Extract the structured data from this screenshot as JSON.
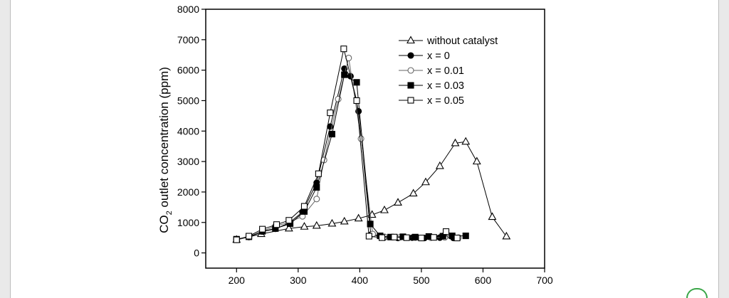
{
  "chart_data": {
    "type": "line",
    "title": "",
    "xlabel": "",
    "ylabel": "CO2 outlet concentration (ppm)",
    "ylabel_main": "CO",
    "ylabel_sub": "2",
    "ylabel_rest": " outlet concentration (ppm)",
    "xlim": [
      150,
      700
    ],
    "ylim": [
      -500,
      8000
    ],
    "x_ticks": [
      200,
      300,
      400,
      500,
      600,
      700
    ],
    "y_ticks": [
      0,
      1000,
      2000,
      3000,
      4000,
      5000,
      6000,
      7000,
      8000
    ],
    "legend_position": "top-right",
    "grid": false,
    "series": [
      {
        "name": "without catalyst",
        "marker": "triangle-open",
        "color": "#000000",
        "x": [
          200,
          240,
          285,
          310,
          330,
          355,
          375,
          398,
          420,
          440,
          462,
          487,
          507,
          530,
          555,
          572,
          590,
          615,
          638
        ],
        "y": [
          430,
          620,
          800,
          860,
          890,
          960,
          1030,
          1130,
          1250,
          1400,
          1650,
          1950,
          2320,
          2850,
          3600,
          3650,
          3000,
          1180,
          540
        ]
      },
      {
        "name": "x = 0",
        "marker": "circle-filled",
        "color": "#000000",
        "x": [
          200,
          220,
          242,
          263,
          285,
          307,
          330,
          352,
          375,
          385,
          398,
          418,
          440,
          462,
          485,
          505,
          530,
          552
        ],
        "y": [
          440,
          520,
          700,
          790,
          980,
          1340,
          2300,
          4150,
          6050,
          5800,
          4650,
          600,
          510,
          490,
          500,
          490,
          500,
          490
        ]
      },
      {
        "name": "x = 0.01",
        "marker": "circle-open",
        "color": "#666666",
        "x": [
          200,
          220,
          242,
          263,
          285,
          307,
          330,
          342,
          365,
          382,
          402,
          421,
          440,
          465,
          490,
          515,
          538,
          560
        ],
        "y": [
          430,
          520,
          720,
          880,
          1000,
          1200,
          1770,
          3050,
          5050,
          6400,
          3750,
          620,
          530,
          510,
          500,
          500,
          510,
          500
        ]
      },
      {
        "name": "x = 0.03",
        "marker": "square-filled",
        "color": "#000000",
        "x": [
          200,
          220,
          242,
          263,
          287,
          310,
          330,
          355,
          375,
          395,
          417,
          433,
          450,
          470,
          490,
          512,
          535,
          550,
          572
        ],
        "y": [
          450,
          530,
          710,
          800,
          960,
          1360,
          2150,
          3900,
          5850,
          5600,
          950,
          560,
          520,
          530,
          520,
          540,
          550,
          560,
          560
        ]
      },
      {
        "name": "x = 0.05",
        "marker": "square-open",
        "color": "#000000",
        "x": [
          200,
          220,
          242,
          265,
          285,
          310,
          333,
          352,
          374,
          395,
          415,
          436,
          456,
          476,
          500,
          520,
          540,
          558
        ],
        "y": [
          430,
          550,
          780,
          930,
          1070,
          1530,
          2600,
          4600,
          6700,
          5000,
          550,
          500,
          520,
          500,
          490,
          510,
          700,
          490
        ]
      }
    ]
  }
}
